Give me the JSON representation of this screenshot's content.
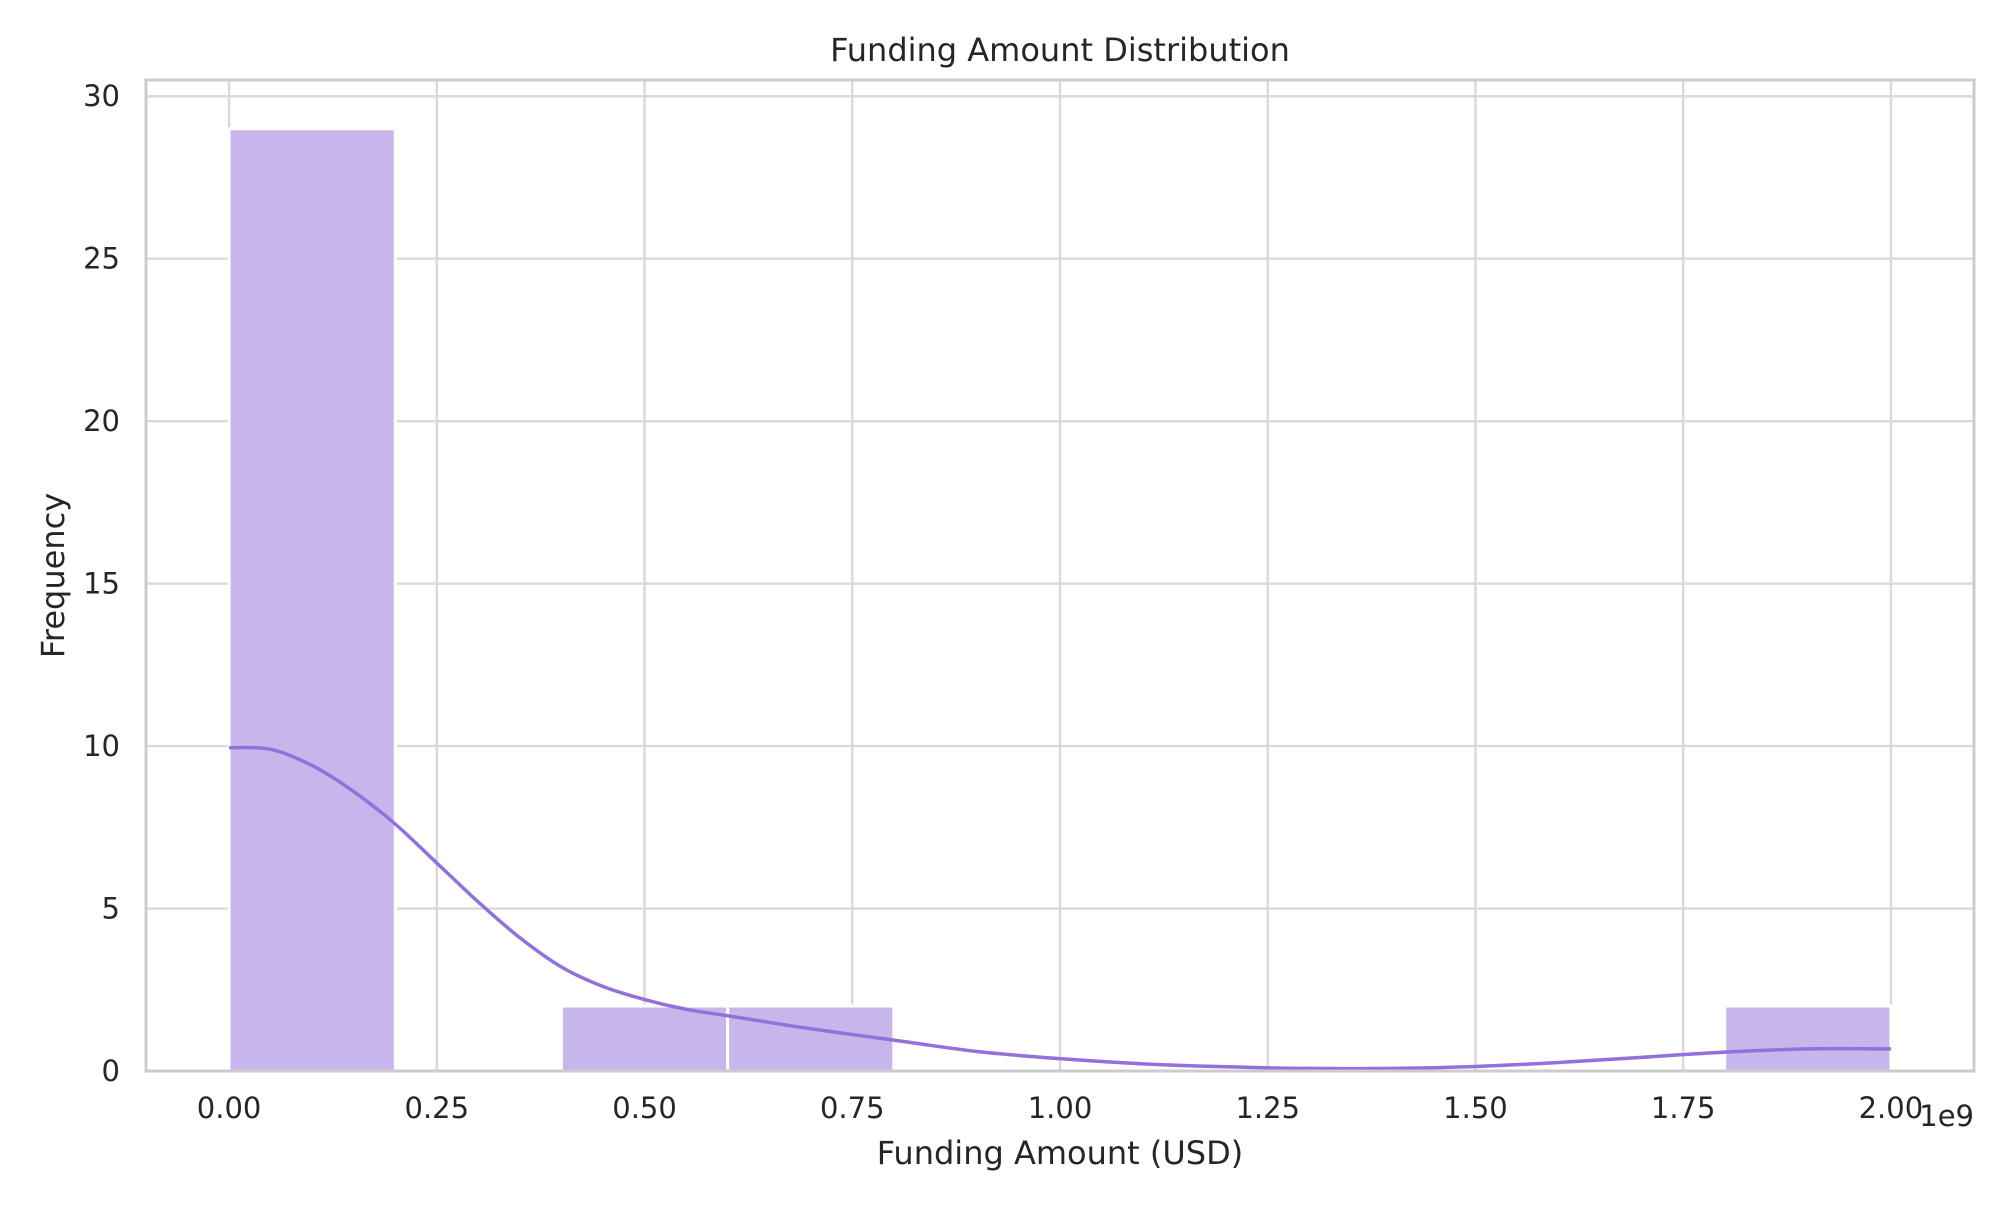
{
  "chart_data": {
    "type": "histogram",
    "title": "Funding Amount Distribution",
    "xlabel": "Funding Amount (USD)",
    "ylabel": "Frequency",
    "x_offset_label": "1e9",
    "xlim": [
      -0.1,
      2.1
    ],
    "ylim": [
      0,
      30.5
    ],
    "xticks": [
      0.0,
      0.25,
      0.5,
      0.75,
      1.0,
      1.25,
      1.5,
      1.75,
      2.0
    ],
    "xtick_labels": [
      "0.00",
      "0.25",
      "0.50",
      "0.75",
      "1.00",
      "1.25",
      "1.50",
      "1.75",
      "2.00"
    ],
    "yticks": [
      0,
      5,
      10,
      15,
      20,
      25,
      30
    ],
    "ytick_labels": [
      "0",
      "5",
      "10",
      "15",
      "20",
      "25",
      "30"
    ],
    "grid": true,
    "bins": [
      {
        "x0": 0.0,
        "x1": 0.2,
        "count": 29
      },
      {
        "x0": 0.2,
        "x1": 0.4,
        "count": 0
      },
      {
        "x0": 0.4,
        "x1": 0.6,
        "count": 2
      },
      {
        "x0": 0.6,
        "x1": 0.8,
        "count": 2
      },
      {
        "x0": 0.8,
        "x1": 1.0,
        "count": 0
      },
      {
        "x0": 1.0,
        "x1": 1.2,
        "count": 0
      },
      {
        "x0": 1.2,
        "x1": 1.4,
        "count": 0
      },
      {
        "x0": 1.4,
        "x1": 1.6,
        "count": 0
      },
      {
        "x0": 1.6,
        "x1": 1.8,
        "count": 0
      },
      {
        "x0": 1.8,
        "x1": 2.0,
        "count": 2
      }
    ],
    "kde": {
      "x": [
        0.0,
        0.05,
        0.1,
        0.15,
        0.2,
        0.25,
        0.3,
        0.35,
        0.4,
        0.45,
        0.5,
        0.55,
        0.6,
        0.7,
        0.8,
        0.9,
        1.0,
        1.1,
        1.2,
        1.3,
        1.4,
        1.5,
        1.6,
        1.7,
        1.8,
        1.9,
        2.0
      ],
      "y": [
        9.95,
        9.9,
        9.4,
        8.6,
        7.6,
        6.4,
        5.2,
        4.1,
        3.2,
        2.6,
        2.2,
        1.9,
        1.7,
        1.3,
        0.95,
        0.6,
        0.38,
        0.22,
        0.13,
        0.08,
        0.08,
        0.14,
        0.26,
        0.42,
        0.58,
        0.68,
        0.68
      ]
    },
    "colors": {
      "bar_fill": "#c7b6ec",
      "kde_line": "#9370db",
      "grid": "#d9d9d9",
      "frame": "#cccccc"
    }
  }
}
